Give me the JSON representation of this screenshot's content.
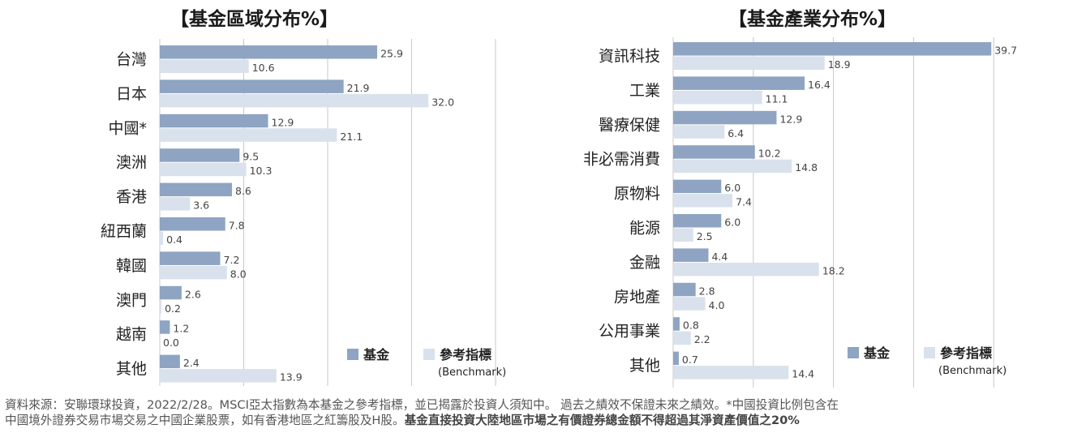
{
  "colors": {
    "fund": "#8EA4C2",
    "benchmark": "#D9E1EC",
    "grid": "#C8C8C8",
    "label": "#444444"
  },
  "chart_data": [
    {
      "type": "bar",
      "orientation": "horizontal",
      "title": "【基金區域分布%】",
      "categories": [
        "台灣",
        "日本",
        "中國*",
        "澳洲",
        "香港",
        "紐西蘭",
        "韓國",
        "澳門",
        "越南",
        "其他"
      ],
      "series": [
        {
          "name": "基金",
          "values": [
            25.9,
            21.9,
            12.9,
            9.5,
            8.6,
            7.8,
            7.2,
            2.6,
            1.2,
            2.4
          ]
        },
        {
          "name": "參考指標 (Benchmark)",
          "values": [
            10.6,
            32.0,
            21.1,
            10.3,
            3.6,
            0.4,
            8.0,
            0.2,
            0.0,
            13.9
          ]
        }
      ],
      "xlim": [
        0,
        40
      ],
      "grid": true,
      "legend": "bottom-right"
    },
    {
      "type": "bar",
      "orientation": "horizontal",
      "title": "【基金產業分布%】",
      "categories": [
        "資訊科技",
        "工業",
        "醫療保健",
        "非必需消費",
        "原物料",
        "能源",
        "金融",
        "房地產",
        "公用事業",
        "其他"
      ],
      "series": [
        {
          "name": "基金",
          "values": [
            39.7,
            16.4,
            12.9,
            10.2,
            6.0,
            6.0,
            4.4,
            2.8,
            0.8,
            0.7
          ]
        },
        {
          "name": "參考指標 (Benchmark)",
          "values": [
            18.9,
            11.1,
            6.4,
            14.8,
            7.4,
            2.5,
            18.2,
            4.0,
            2.2,
            14.4
          ]
        }
      ],
      "xlim": [
        0,
        40
      ],
      "grid": true,
      "legend": "bottom-right"
    }
  ],
  "legend": {
    "fund": "基金",
    "benchmark": "參考指標",
    "benchmark_en": "(Benchmark)"
  },
  "footnote": {
    "line1": "資料來源：安聯環球投資，2022/2/28。MSCI亞太指數為本基金之參考指標，並已揭露於投資人須知中。 過去之績效不保證未來之績效。*中國投資比例包含在",
    "line2_plain": "中國境外證券交易市場交易之中國企業股票，如有香港地區之紅籌股及H股。",
    "line2_bold": "基金直接投資大陸地區市場之有價證券總金額不得超過其淨資產價值之20%"
  }
}
